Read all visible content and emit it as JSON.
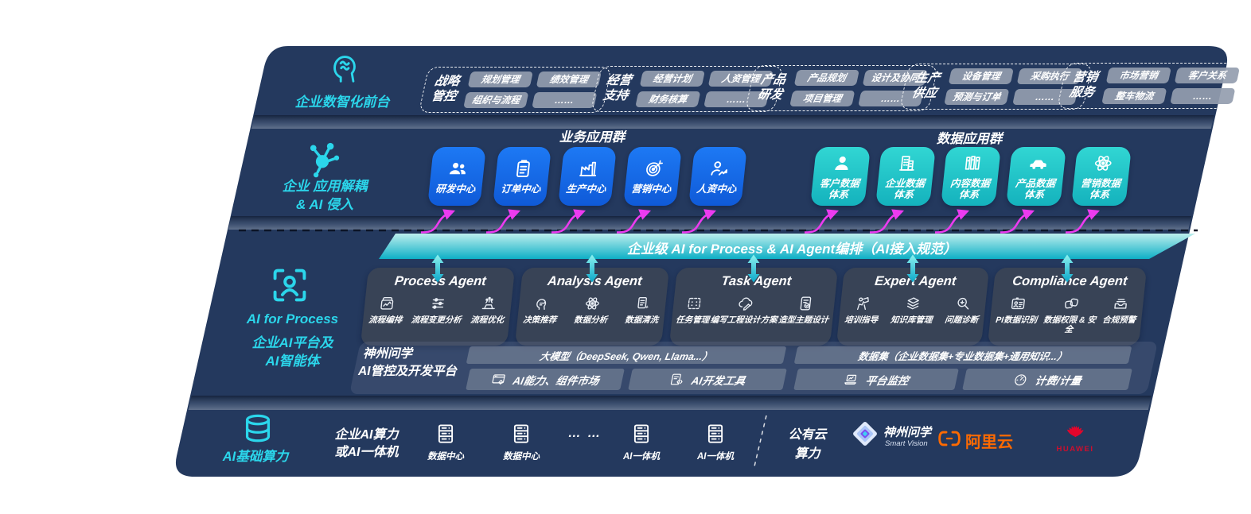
{
  "front_office": {
    "label": "企业数智化前台",
    "icon": "brain-icon",
    "groups": [
      {
        "title": "战略管控",
        "chips": [
          "规划管理",
          "绩效管理",
          "组织与流程",
          "……"
        ]
      },
      {
        "title": "经营支持",
        "chips": [
          "经营计划",
          "人资管理",
          "财务核算",
          "……"
        ]
      },
      {
        "title": "产品研发",
        "chips": [
          "产品规划",
          "设计及协同",
          "项目管理",
          "……"
        ]
      },
      {
        "title": "生产供应",
        "chips": [
          "设备管理",
          "采购执行",
          "预测与订单",
          "……"
        ]
      },
      {
        "title": "营销服务",
        "chips": [
          "市场营销",
          "客户关系",
          "整车物流",
          "……"
        ]
      }
    ]
  },
  "app_layer": {
    "icon": "molecule-icon",
    "label_line1": "企业 应用解耦",
    "label_line2": "& AI 侵入",
    "business_group": {
      "title": "业务应用群",
      "tiles": [
        {
          "label": "研发中心",
          "icon": "team-icon"
        },
        {
          "label": "订单中心",
          "icon": "clipboard-icon"
        },
        {
          "label": "生产中心",
          "icon": "factory-icon"
        },
        {
          "label": "营销中心",
          "icon": "target-icon"
        },
        {
          "label": "人资中心",
          "icon": "hr-icon"
        }
      ]
    },
    "data_group": {
      "title": "数据应用群",
      "tiles": [
        {
          "label": "客户数据体系",
          "icon": "person-icon"
        },
        {
          "label": "企业数据体系",
          "icon": "building-icon"
        },
        {
          "label": "内容数据体系",
          "icon": "books-icon"
        },
        {
          "label": "产品数据体系",
          "icon": "car-icon"
        },
        {
          "label": "营销数据体系",
          "icon": "atom-icon"
        }
      ]
    }
  },
  "banner": {
    "text": "企业级 AI for Process & AI Agent编排（AI接入规范）"
  },
  "ai_layer": {
    "icon": "person-scan-icon",
    "label_line1": "AI for Process",
    "label_line2": "企业AI平台及",
    "label_line3": "AI智能体",
    "agents": [
      {
        "title": "Process Agent",
        "capabilities": [
          {
            "label": "流程编排",
            "icon": "flow-chart-icon"
          },
          {
            "label": "流程变更分析",
            "icon": "flow-change-icon"
          },
          {
            "label": "流程优化",
            "icon": "flow-optimize-icon"
          }
        ]
      },
      {
        "title": "Analysis Agent",
        "capabilities": [
          {
            "label": "决策推荐",
            "icon": "decision-icon"
          },
          {
            "label": "数据分析",
            "icon": "atom-icon"
          },
          {
            "label": "数据清洗",
            "icon": "data-clean-icon"
          }
        ]
      },
      {
        "title": "Task Agent",
        "capabilities": [
          {
            "label": "任务管理",
            "icon": "task-grid-icon"
          },
          {
            "label": "编写工程设计方案",
            "icon": "cloud-edit-icon"
          },
          {
            "label": "造型主题设计",
            "icon": "design-pad-icon"
          }
        ]
      },
      {
        "title": "Expert Agent",
        "capabilities": [
          {
            "label": "培训指导",
            "icon": "training-icon"
          },
          {
            "label": "知识库管理",
            "icon": "layers-icon"
          },
          {
            "label": "问题诊断",
            "icon": "diagnose-icon"
          }
        ]
      },
      {
        "title": "Compliance Agent",
        "capabilities": [
          {
            "label": "PI数据识别",
            "icon": "id-card-icon"
          },
          {
            "label": "数据权限 & 安全",
            "icon": "permission-icon"
          },
          {
            "label": "合规预警",
            "icon": "alert-tray-icon"
          }
        ]
      }
    ]
  },
  "platform": {
    "label_line1": "神州问学",
    "label_line2": "AI管控及开发平台",
    "model_bar": "大模型（DeepSeek, Qwen, Llama...）",
    "model_cells": [
      {
        "label": "AI能力、组件市场",
        "icon": "app-market-icon"
      },
      {
        "label": "AI开发工具",
        "icon": "dev-tools-icon"
      }
    ],
    "dataset_bar": "数据集（企业数据集+专业数据集+通用知识...）",
    "dataset_cells": [
      {
        "label": "平台监控",
        "icon": "monitor-icon"
      },
      {
        "label": "计费/计量",
        "icon": "gauge-icon"
      }
    ]
  },
  "infra": {
    "icon": "database-icon",
    "label": "AI基础算力",
    "compute_line1": "企业AI算力",
    "compute_line2": "或AI一体机",
    "nodes": [
      {
        "label": "数据中心",
        "icon": "server-icon"
      },
      {
        "label": "数据中心",
        "icon": "server-icon"
      },
      {
        "label": "AI一体机",
        "icon": "server-icon"
      },
      {
        "label": "AI一体机",
        "icon": "server-icon"
      }
    ],
    "ellipsis": "… …",
    "cloud_line1": "公有云",
    "cloud_line2": "算力",
    "vendors": [
      {
        "name": "神州问学",
        "sub": "Smart Vision",
        "icon": "smartvision-logo"
      },
      {
        "name": "阿里云",
        "icon": "aliyun-logo"
      },
      {
        "name": "HUAWEI",
        "icon": "huawei-logo"
      }
    ]
  },
  "colors": {
    "navy": "#24395E",
    "blue_tile": "#1668E8",
    "teal_tile": "#1FC6C8",
    "cyan_text": "#2BD6EB",
    "banner_teal": "#14B9CB",
    "magenta": "#EC3BF0",
    "chip_gray": "#939CAF",
    "agent_box": "#3A4658",
    "aliyun_orange": "#FF6A00",
    "huawei_red": "#CE0E2D"
  }
}
